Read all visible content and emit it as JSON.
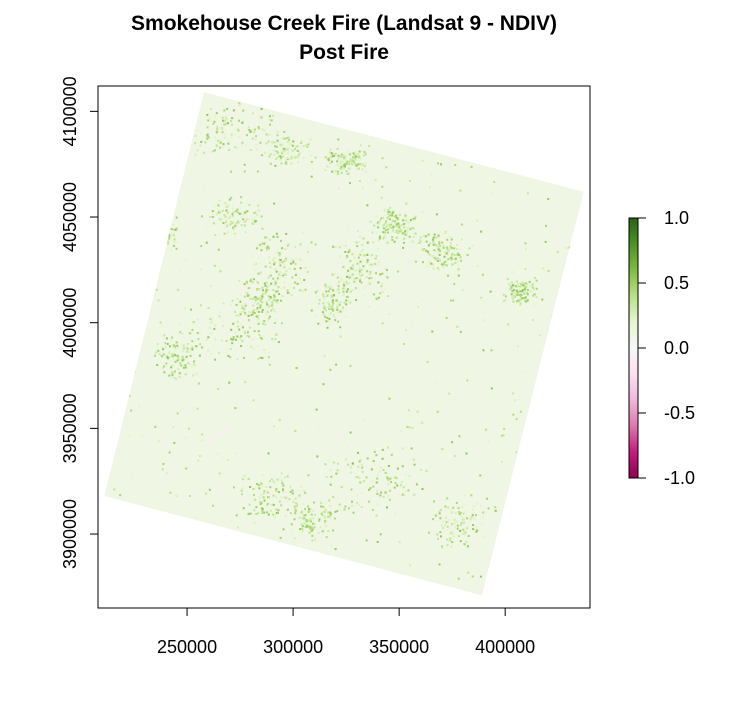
{
  "chart_data": {
    "type": "heatmap",
    "title": "Smokehouse Creek Fire (Landsat 9 - NDIV)",
    "subtitle": "Post Fire",
    "x_ticks": [
      250000,
      300000,
      350000,
      400000
    ],
    "y_ticks": [
      3900000,
      3950000,
      4000000,
      4050000,
      4100000
    ],
    "xlim": [
      208000,
      440000
    ],
    "ylim": [
      3865000,
      4112000
    ],
    "footprint_corners": [
      {
        "x": 258000,
        "y": 4109000
      },
      {
        "x": 437000,
        "y": 4062000
      },
      {
        "x": 389000,
        "y": 3871000
      },
      {
        "x": 211000,
        "y": 3918000
      }
    ],
    "value_range": [
      -1.0,
      1.0
    ],
    "typical_value": 0.1,
    "max_patch_value": 0.55,
    "min_patch_value": -0.1,
    "colorbar_ticks": [
      "1.0",
      "0.5",
      "0.0",
      "-0.5",
      "-1.0"
    ],
    "colorscale": [
      "#8e0152",
      "#c51b7d",
      "#de77ae",
      "#f1b6da",
      "#fde0ef",
      "#f7f7f7",
      "#e6f5d0",
      "#b8e186",
      "#7fbc41",
      "#4d9221",
      "#276419"
    ],
    "grid": false,
    "legend": "colorbar-right"
  }
}
